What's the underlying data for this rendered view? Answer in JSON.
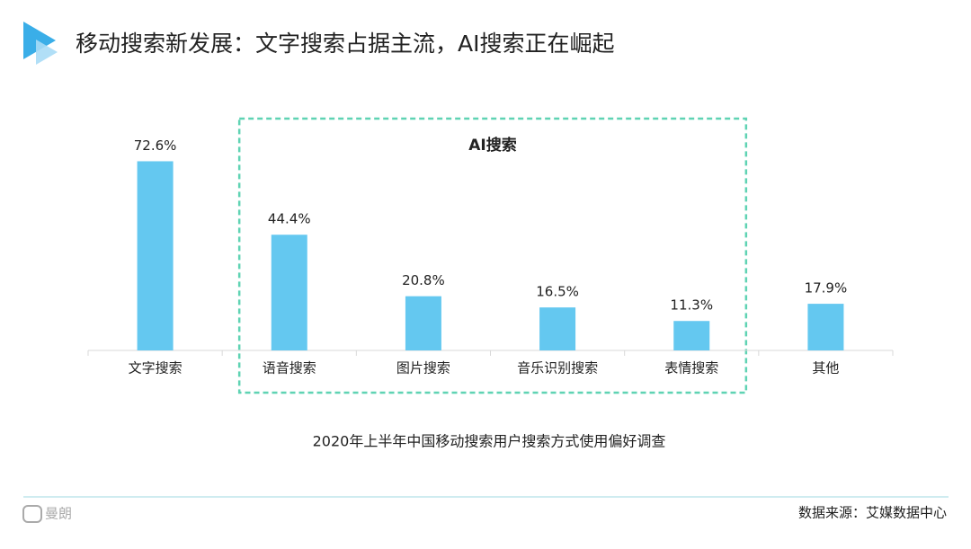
{
  "chart_data": {
    "type": "bar",
    "title": "移动搜索新发展：文字搜索占据主流，AI搜索正在崛起",
    "annotation": "AI搜索",
    "caption": "2020年上半年中国移动搜索用户搜索方式使用偏好调查",
    "source": "数据来源：艾媒数据中心",
    "logo": "曼朗",
    "categories": [
      "文字搜索",
      "语音搜索",
      "图片搜索",
      "音乐识别搜索",
      "表情搜索",
      "其他"
    ],
    "values": [
      72.6,
      44.4,
      20.8,
      16.5,
      11.3,
      17.9
    ],
    "value_labels": [
      "72.6%",
      "44.4%",
      "20.8%",
      "16.5%",
      "11.3%",
      "17.9%"
    ],
    "color": "#64c8f0"
  }
}
